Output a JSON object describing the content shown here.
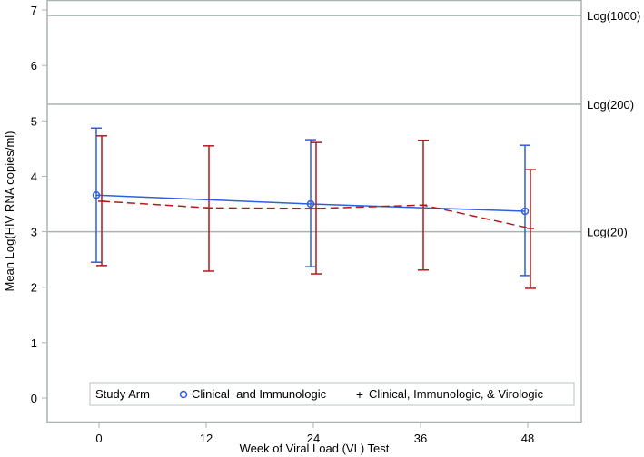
{
  "chart_data": {
    "type": "line",
    "title": "",
    "xlabel": "Week of Viral Load (VL) Test",
    "ylabel": "Mean Log(HIV RNA copies/ml)",
    "xlim": [
      -5.9,
      54
    ],
    "ylim": [
      0,
      7.18
    ],
    "xticks": [
      0,
      12,
      24,
      36,
      48
    ],
    "yticks": [
      0,
      1,
      2,
      3,
      4,
      5,
      6,
      7
    ],
    "grid": false,
    "reference_lines": [
      {
        "y": 3.0,
        "label": "Log(20)"
      },
      {
        "y": 5.3,
        "label": "Log(200)"
      },
      {
        "y": 6.9,
        "label": "Log(1000)"
      }
    ],
    "legend": {
      "title": "Study Arm",
      "position": "bottom-inside"
    },
    "series": [
      {
        "name": "Clinical  and Immunologic",
        "color": "#2f5fe0",
        "marker": "circle",
        "line": "solid",
        "x": [
          0,
          24,
          48
        ],
        "y": [
          3.66,
          3.5,
          3.37
        ],
        "lower": [
          2.45,
          2.37,
          2.21
        ],
        "upper": [
          4.87,
          4.66,
          4.56
        ]
      },
      {
        "name": "Clinical, Immunologic, & Virologic",
        "color": "#b01c1c",
        "marker": "plus",
        "line": "dashed",
        "x": [
          0,
          12,
          24,
          36,
          48
        ],
        "y": [
          3.55,
          3.43,
          3.42,
          3.48,
          3.06
        ],
        "lower": [
          2.39,
          2.29,
          2.24,
          2.31,
          1.98
        ],
        "upper": [
          4.73,
          4.55,
          4.61,
          4.65,
          4.12
        ]
      }
    ]
  }
}
